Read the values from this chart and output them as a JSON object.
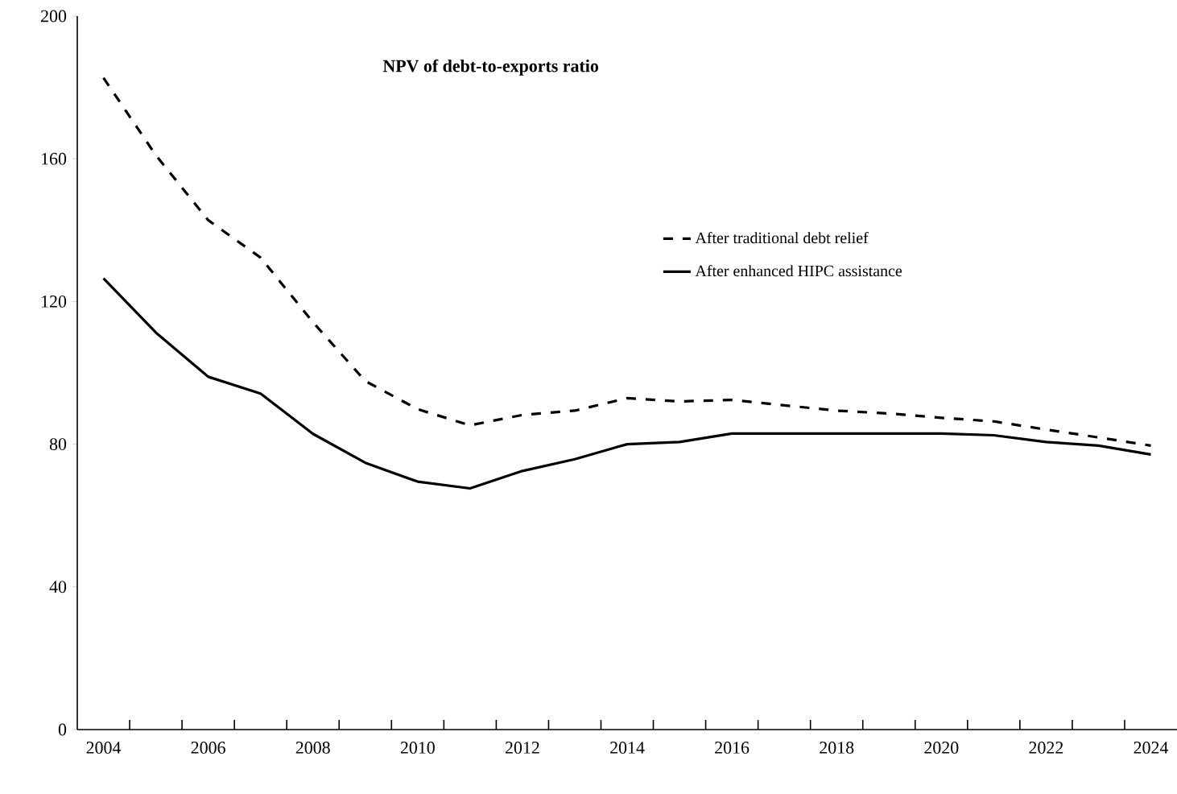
{
  "chart_data": {
    "type": "line",
    "title": "NPV of debt-to-exports ratio",
    "categories": [
      "2004",
      null,
      "2006",
      null,
      "2008",
      null,
      "2010",
      null,
      "2012",
      null,
      "2014",
      null,
      "2016",
      null,
      "2018",
      null,
      "2020",
      null,
      "2022",
      null,
      "2024"
    ],
    "series": [
      {
        "name": "After traditional debt relief",
        "color": "#000000",
        "line_style": "dashed",
        "values": [
          182.7,
          161,
          142.8,
          132.3,
          114.2,
          97.7,
          89.8,
          85.3,
          88.2,
          89.4,
          92.9,
          92.0,
          92.4,
          90.9,
          89.4,
          88.6,
          87.4,
          86.4,
          84.1,
          81.9,
          79.6
        ]
      },
      {
        "name": "After enhanced HIPC assistance",
        "color": "#000000",
        "line_style": "solid",
        "values": [
          126.5,
          111.3,
          98.9,
          94.2,
          82.9,
          74.8,
          69.5,
          67.6,
          72.5,
          75.8,
          80.0,
          80.6,
          83.0,
          83.0,
          83.0,
          83.0,
          83.0,
          82.5,
          80.6,
          79.6,
          77.1
        ]
      }
    ],
    "ylim": [
      0,
      200
    ],
    "yticks": [
      0,
      40,
      80,
      120,
      160,
      200
    ],
    "grid": false,
    "legend": "top right",
    "marker": "none"
  }
}
